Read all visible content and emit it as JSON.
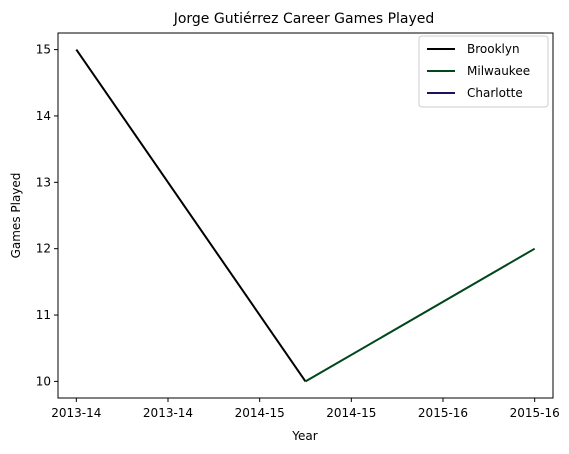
{
  "chart_data": {
    "type": "line",
    "title": "Jorge Gutiérrez  Career Games Played",
    "xlabel": "Year",
    "ylabel": "Games Played",
    "x_ticks": [
      "2013-14",
      "2013-14",
      "2014-15",
      "2014-15",
      "2015-16",
      "2015-16"
    ],
    "x_domain": [
      -0.2,
      5.2
    ],
    "yticks": [
      10,
      11,
      12,
      13,
      14,
      15
    ],
    "ylim": [
      9.75,
      15.25
    ],
    "grid": false,
    "legend_position": "top-right",
    "series": [
      {
        "name": "Brooklyn",
        "color": "#000000",
        "points": [
          [
            0,
            15
          ],
          [
            2.5,
            10
          ]
        ]
      },
      {
        "name": "Milwaukee",
        "color": "#00471b",
        "points": [
          [
            2.5,
            10
          ],
          [
            5,
            12
          ]
        ]
      },
      {
        "name": "Charlotte",
        "color": "#1d1160",
        "points": []
      }
    ]
  }
}
